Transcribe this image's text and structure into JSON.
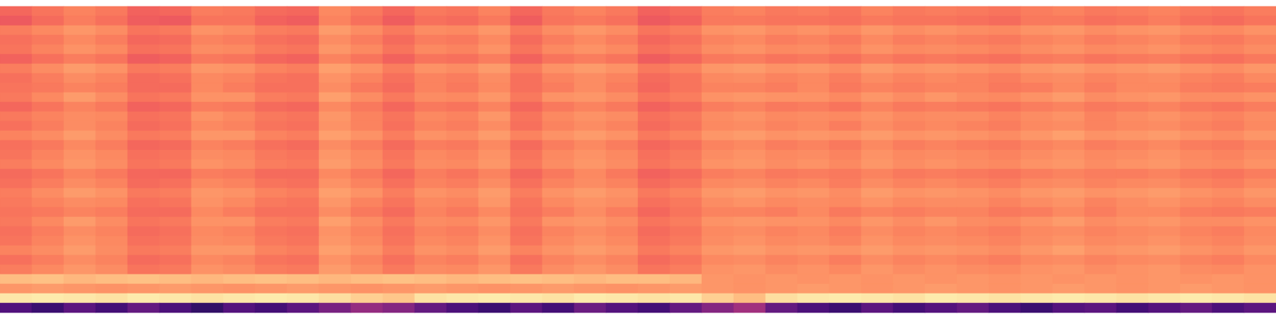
{
  "chart_data": {
    "type": "heatmap",
    "color": "magma",
    "tick_labels": false,
    "zlim": [
      0,
      100
    ],
    "cells": [
      [
        68,
        71,
        74,
        72,
        67,
        68,
        73,
        72,
        69,
        68,
        75,
        72,
        68,
        72,
        71,
        74,
        68,
        72,
        74,
        72,
        67,
        69,
        73,
        74,
        72,
        73,
        71,
        74,
        72,
        73,
        72,
        71,
        73,
        74,
        72,
        73,
        74,
        72,
        71,
        73
      ],
      [
        65,
        69,
        73,
        70,
        66,
        65,
        71,
        71,
        67,
        66,
        74,
        70,
        66,
        70,
        69,
        72,
        66,
        71,
        72,
        70,
        65,
        67,
        72,
        72,
        71,
        71,
        70,
        72,
        71,
        71,
        70,
        69,
        72,
        72,
        70,
        71,
        73,
        70,
        69,
        71
      ],
      [
        73,
        75,
        78,
        76,
        71,
        72,
        77,
        76,
        73,
        72,
        79,
        76,
        72,
        76,
        75,
        78,
        72,
        76,
        78,
        76,
        71,
        73,
        77,
        78,
        76,
        77,
        75,
        78,
        76,
        77,
        76,
        75,
        77,
        78,
        76,
        77,
        78,
        76,
        75,
        77
      ],
      [
        70,
        72,
        75,
        73,
        68,
        69,
        74,
        73,
        70,
        69,
        76,
        73,
        69,
        73,
        72,
        75,
        69,
        73,
        75,
        73,
        68,
        70,
        74,
        75,
        73,
        74,
        72,
        75,
        73,
        74,
        73,
        72,
        74,
        75,
        73,
        74,
        75,
        73,
        72,
        74
      ],
      [
        71,
        74,
        77,
        75,
        70,
        71,
        76,
        75,
        72,
        71,
        78,
        75,
        71,
        75,
        74,
        77,
        71,
        75,
        77,
        75,
        70,
        72,
        76,
        77,
        75,
        76,
        74,
        77,
        75,
        76,
        75,
        74,
        76,
        77,
        75,
        76,
        77,
        75,
        74,
        76
      ],
      [
        67,
        70,
        73,
        71,
        66,
        67,
        72,
        71,
        68,
        67,
        74,
        71,
        67,
        71,
        70,
        73,
        67,
        71,
        73,
        71,
        66,
        68,
        72,
        73,
        71,
        72,
        70,
        73,
        71,
        72,
        71,
        70,
        72,
        73,
        71,
        72,
        73,
        71,
        70,
        72
      ],
      [
        73,
        76,
        79,
        77,
        72,
        73,
        78,
        77,
        74,
        73,
        80,
        77,
        73,
        77,
        76,
        79,
        73,
        77,
        79,
        77,
        72,
        74,
        78,
        79,
        77,
        78,
        76,
        79,
        77,
        78,
        77,
        76,
        78,
        79,
        77,
        78,
        79,
        77,
        76,
        78
      ],
      [
        70,
        73,
        76,
        74,
        69,
        70,
        75,
        74,
        71,
        70,
        77,
        74,
        70,
        74,
        73,
        76,
        70,
        74,
        76,
        74,
        69,
        71,
        75,
        76,
        74,
        75,
        73,
        76,
        74,
        75,
        74,
        73,
        75,
        76,
        74,
        75,
        76,
        74,
        73,
        75
      ],
      [
        71,
        72,
        74,
        73,
        69,
        69,
        75,
        73,
        70,
        70,
        76,
        72,
        69,
        74,
        72,
        75,
        70,
        73,
        76,
        73,
        68,
        71,
        74,
        74,
        73,
        75,
        72,
        74,
        73,
        74,
        74,
        72,
        73,
        75,
        73,
        75,
        75,
        73,
        72,
        73
      ],
      [
        72,
        75,
        79,
        76,
        71,
        72,
        77,
        77,
        73,
        72,
        80,
        76,
        72,
        76,
        75,
        78,
        72,
        77,
        78,
        76,
        71,
        73,
        77,
        78,
        77,
        77,
        75,
        78,
        76,
        78,
        76,
        75,
        77,
        79,
        76,
        77,
        78,
        76,
        76,
        77
      ],
      [
        68,
        71,
        74,
        72,
        67,
        68,
        73,
        72,
        69,
        68,
        75,
        72,
        68,
        72,
        71,
        74,
        68,
        72,
        74,
        72,
        67,
        69,
        73,
        74,
        72,
        73,
        71,
        74,
        72,
        73,
        72,
        71,
        73,
        74,
        72,
        73,
        74,
        72,
        71,
        73
      ],
      [
        72,
        74,
        76,
        75,
        70,
        71,
        77,
        75,
        72,
        71,
        78,
        74,
        71,
        75,
        74,
        78,
        71,
        75,
        77,
        76,
        70,
        72,
        76,
        77,
        75,
        76,
        75,
        77,
        75,
        76,
        76,
        74,
        76,
        77,
        74,
        76,
        77,
        75,
        74,
        76
      ],
      [
        70,
        73,
        76,
        74,
        69,
        70,
        75,
        74,
        71,
        70,
        77,
        74,
        70,
        74,
        73,
        76,
        70,
        74,
        76,
        74,
        69,
        71,
        75,
        76,
        74,
        75,
        73,
        76,
        74,
        75,
        74,
        73,
        75,
        76,
        74,
        75,
        76,
        74,
        73,
        75
      ],
      [
        74,
        76,
        79,
        76,
        72,
        73,
        78,
        78,
        74,
        73,
        80,
        77,
        73,
        77,
        76,
        79,
        74,
        77,
        79,
        77,
        72,
        74,
        78,
        79,
        77,
        78,
        77,
        79,
        77,
        78,
        77,
        76,
        78,
        80,
        77,
        78,
        79,
        77,
        76,
        78
      ],
      [
        70,
        72,
        75,
        73,
        68,
        69,
        74,
        73,
        70,
        69,
        76,
        73,
        69,
        73,
        72,
        75,
        69,
        73,
        75,
        73,
        68,
        70,
        74,
        75,
        73,
        74,
        72,
        75,
        73,
        74,
        73,
        72,
        74,
        75,
        73,
        74,
        75,
        73,
        72,
        74
      ],
      [
        71,
        74,
        77,
        75,
        70,
        71,
        76,
        75,
        72,
        71,
        78,
        75,
        71,
        75,
        74,
        77,
        71,
        75,
        77,
        75,
        70,
        72,
        76,
        77,
        75,
        76,
        74,
        77,
        75,
        76,
        75,
        74,
        76,
        77,
        75,
        76,
        77,
        75,
        74,
        76
      ],
      [
        73,
        75,
        78,
        76,
        71,
        72,
        77,
        76,
        73,
        72,
        79,
        76,
        72,
        76,
        75,
        78,
        72,
        76,
        78,
        76,
        71,
        73,
        77,
        78,
        76,
        77,
        75,
        78,
        76,
        77,
        76,
        75,
        77,
        78,
        76,
        77,
        78,
        76,
        75,
        77
      ],
      [
        69,
        71,
        74,
        72,
        68,
        68,
        73,
        72,
        69,
        69,
        75,
        72,
        68,
        73,
        71,
        74,
        68,
        72,
        75,
        72,
        67,
        69,
        73,
        74,
        72,
        73,
        72,
        74,
        72,
        73,
        72,
        71,
        73,
        74,
        73,
        73,
        74,
        72,
        71,
        73
      ],
      [
        70,
        73,
        76,
        74,
        69,
        70,
        75,
        74,
        71,
        70,
        77,
        74,
        70,
        74,
        73,
        76,
        70,
        74,
        76,
        74,
        69,
        71,
        75,
        76,
        74,
        75,
        73,
        76,
        74,
        75,
        74,
        73,
        75,
        76,
        74,
        75,
        76,
        74,
        73,
        75
      ],
      [
        73,
        76,
        79,
        77,
        72,
        73,
        78,
        77,
        74,
        73,
        80,
        77,
        73,
        77,
        76,
        79,
        73,
        77,
        79,
        77,
        72,
        74,
        78,
        79,
        77,
        78,
        76,
        79,
        77,
        78,
        77,
        76,
        78,
        79,
        77,
        78,
        79,
        77,
        76,
        78
      ],
      [
        72,
        74,
        76,
        75,
        70,
        71,
        77,
        75,
        72,
        71,
        78,
        74,
        71,
        75,
        74,
        78,
        71,
        75,
        77,
        76,
        70,
        72,
        76,
        77,
        75,
        76,
        75,
        77,
        75,
        76,
        76,
        74,
        76,
        77,
        74,
        76,
        77,
        75,
        74,
        76
      ],
      [
        71,
        72,
        74,
        73,
        69,
        69,
        75,
        73,
        70,
        70,
        76,
        72,
        69,
        74,
        72,
        75,
        70,
        73,
        76,
        73,
        68,
        71,
        74,
        74,
        73,
        75,
        72,
        74,
        73,
        74,
        74,
        72,
        73,
        75,
        73,
        75,
        75,
        73,
        72,
        73
      ],
      [
        72,
        75,
        79,
        76,
        71,
        72,
        77,
        77,
        73,
        72,
        80,
        76,
        72,
        76,
        75,
        78,
        72,
        77,
        78,
        76,
        71,
        73,
        77,
        78,
        77,
        77,
        75,
        78,
        76,
        78,
        76,
        75,
        77,
        79,
        76,
        77,
        78,
        76,
        76,
        77
      ],
      [
        70,
        73,
        76,
        74,
        69,
        70,
        75,
        74,
        71,
        70,
        77,
        74,
        70,
        74,
        73,
        76,
        70,
        74,
        76,
        74,
        69,
        71,
        75,
        76,
        74,
        75,
        73,
        76,
        74,
        75,
        74,
        73,
        75,
        76,
        74,
        75,
        76,
        74,
        73,
        75
      ],
      [
        71,
        74,
        77,
        75,
        70,
        71,
        76,
        75,
        72,
        71,
        78,
        75,
        71,
        75,
        74,
        77,
        71,
        75,
        77,
        75,
        70,
        72,
        76,
        77,
        75,
        76,
        74,
        77,
        75,
        76,
        75,
        74,
        76,
        77,
        75,
        76,
        77,
        75,
        74,
        76
      ],
      [
        74,
        76,
        79,
        76,
        72,
        73,
        78,
        78,
        74,
        73,
        80,
        77,
        73,
        77,
        76,
        79,
        74,
        77,
        79,
        77,
        72,
        74,
        78,
        79,
        77,
        78,
        77,
        79,
        77,
        78,
        77,
        76,
        78,
        80,
        77,
        78,
        79,
        77,
        76,
        78
      ],
      [
        70,
        73,
        76,
        74,
        69,
        70,
        75,
        74,
        71,
        70,
        77,
        74,
        70,
        74,
        73,
        76,
        70,
        74,
        76,
        74,
        69,
        71,
        75,
        76,
        74,
        75,
        73,
        76,
        74,
        75,
        74,
        73,
        75,
        76,
        74,
        75,
        76,
        74,
        73,
        75
      ],
      [
        73,
        75,
        78,
        76,
        71,
        72,
        77,
        76,
        73,
        72,
        79,
        76,
        72,
        76,
        75,
        78,
        72,
        76,
        78,
        76,
        71,
        73,
        77,
        78,
        76,
        77,
        75,
        78,
        76,
        77,
        76,
        75,
        77,
        78,
        76,
        77,
        78,
        76,
        75,
        77
      ],
      [
        86,
        87,
        85,
        86,
        87,
        86,
        85,
        86,
        87,
        86,
        85,
        86,
        87,
        86,
        85,
        86,
        87,
        86,
        85,
        86,
        86,
        85,
        78,
        77,
        78,
        77,
        78,
        77,
        78,
        77,
        78,
        77,
        78,
        77,
        78,
        77,
        78,
        77,
        78,
        77
      ],
      [
        78,
        79,
        78,
        77,
        78,
        79,
        78,
        77,
        78,
        79,
        78,
        77,
        78,
        79,
        78,
        77,
        78,
        79,
        78,
        77,
        78,
        79,
        78,
        77,
        78,
        79,
        78,
        77,
        78,
        79,
        78,
        77,
        78,
        79,
        78,
        77,
        78,
        79,
        78,
        77
      ],
      [
        95,
        96,
        95,
        94,
        96,
        95,
        94,
        95,
        96,
        95,
        93,
        90,
        88,
        94,
        95,
        96,
        95,
        94,
        96,
        95,
        94,
        95,
        90,
        86,
        93,
        95,
        96,
        95,
        94,
        96,
        95,
        94,
        95,
        96,
        95,
        94,
        95,
        96,
        95,
        94
      ],
      [
        25,
        20,
        28,
        22,
        30,
        24,
        18,
        26,
        22,
        28,
        35,
        42,
        38,
        30,
        24,
        20,
        28,
        22,
        32,
        26,
        22,
        30,
        38,
        45,
        30,
        24,
        20,
        28,
        22,
        26,
        30,
        24,
        20,
        26,
        28,
        22,
        26,
        30,
        24,
        28
      ]
    ]
  }
}
